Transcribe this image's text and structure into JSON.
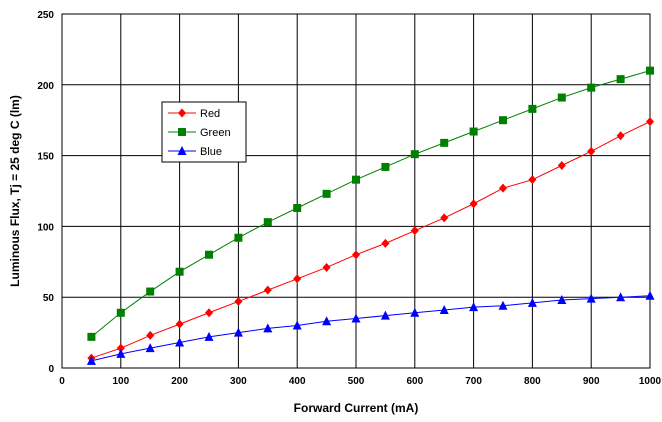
{
  "chart_data": {
    "type": "line",
    "title": "",
    "xlabel": "Forward Current (mA)",
    "ylabel": "Luminous Flux, Tj = 25 deg C (lm)",
    "xlim": [
      0,
      1000
    ],
    "ylim": [
      0,
      250
    ],
    "xticks": [
      0,
      100,
      200,
      300,
      400,
      500,
      600,
      700,
      800,
      900,
      1000
    ],
    "yticks": [
      0,
      50,
      100,
      150,
      200,
      250
    ],
    "grid": true,
    "legend_position": "left",
    "x": [
      50,
      100,
      150,
      200,
      250,
      300,
      350,
      400,
      450,
      500,
      550,
      600,
      650,
      700,
      750,
      800,
      850,
      900,
      950,
      1000
    ],
    "series": [
      {
        "name": "Red",
        "color": "#ff0000",
        "marker": "diamond",
        "values": [
          7,
          14,
          23,
          31,
          39,
          47,
          55,
          63,
          71,
          80,
          88,
          97,
          106,
          116,
          127,
          133,
          143,
          153,
          164,
          174
        ]
      },
      {
        "name": "Green",
        "color": "#008000",
        "marker": "square",
        "values": [
          22,
          39,
          54,
          68,
          80,
          92,
          103,
          113,
          123,
          133,
          142,
          151,
          159,
          167,
          175,
          183,
          191,
          198,
          204,
          210
        ]
      },
      {
        "name": "Blue",
        "color": "#0000ff",
        "marker": "triangle",
        "values": [
          5,
          10,
          14,
          18,
          22,
          25,
          28,
          30,
          33,
          35,
          37,
          39,
          41,
          43,
          44,
          46,
          48,
          49,
          50,
          51
        ]
      }
    ]
  }
}
